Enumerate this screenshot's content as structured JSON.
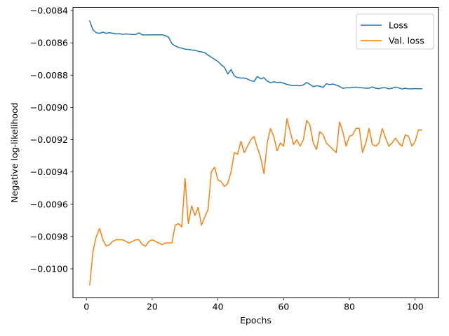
{
  "chart_data": {
    "type": "line",
    "title": "",
    "xlabel": "Epochs",
    "ylabel": "Negative log-likelihood",
    "xlim": [
      -4.1,
      107.1
    ],
    "ylim": [
      -0.01018,
      -0.00838
    ],
    "grid": false,
    "legend_position": "top-right",
    "x_ticks": [
      0,
      20,
      40,
      60,
      80,
      100
    ],
    "x_tick_labels": [
      "0",
      "20",
      "40",
      "60",
      "80",
      "100"
    ],
    "y_ticks": [
      -0.0084,
      -0.0086,
      -0.0088,
      -0.009,
      -0.0092,
      -0.0094,
      -0.0096,
      -0.0098,
      -0.01
    ],
    "y_tick_labels": [
      "−0.0084",
      "−0.0086",
      "−0.0088",
      "−0.0090",
      "−0.0092",
      "−0.0094",
      "−0.0096",
      "−0.0098",
      "−0.0100"
    ],
    "x": [
      1,
      2,
      3,
      4,
      5,
      6,
      7,
      8,
      9,
      10,
      11,
      12,
      13,
      14,
      15,
      16,
      17,
      18,
      19,
      20,
      21,
      22,
      23,
      24,
      25,
      26,
      27,
      28,
      29,
      30,
      31,
      32,
      33,
      34,
      35,
      36,
      37,
      38,
      39,
      40,
      41,
      42,
      43,
      44,
      45,
      46,
      47,
      48,
      49,
      50,
      51,
      52,
      53,
      54,
      55,
      56,
      57,
      58,
      59,
      60,
      61,
      62,
      63,
      64,
      65,
      66,
      67,
      68,
      69,
      70,
      71,
      72,
      73,
      74,
      75,
      76,
      77,
      78,
      79,
      80,
      81,
      82,
      83,
      84,
      85,
      86,
      87,
      88,
      89,
      90,
      91,
      92,
      93,
      94,
      95,
      96,
      97,
      98,
      99,
      100,
      101,
      102
    ],
    "series": [
      {
        "name": "Loss",
        "color": "#1f77b4",
        "values": [
          -0.008465,
          -0.00852,
          -0.008537,
          -0.008541,
          -0.008534,
          -0.008541,
          -0.008537,
          -0.00854,
          -0.008545,
          -0.008543,
          -0.008547,
          -0.008545,
          -0.008546,
          -0.008548,
          -0.008548,
          -0.008538,
          -0.008551,
          -0.008551,
          -0.00855,
          -0.00855,
          -0.00855,
          -0.00855,
          -0.00855,
          -0.008555,
          -0.008565,
          -0.008605,
          -0.008619,
          -0.008628,
          -0.008633,
          -0.008639,
          -0.008641,
          -0.008644,
          -0.008646,
          -0.008652,
          -0.008656,
          -0.008661,
          -0.008676,
          -0.008689,
          -0.008702,
          -0.008715,
          -0.008736,
          -0.008752,
          -0.008793,
          -0.008766,
          -0.008805,
          -0.008815,
          -0.008818,
          -0.008818,
          -0.008824,
          -0.008834,
          -0.008839,
          -0.008808,
          -0.008823,
          -0.008816,
          -0.008837,
          -0.008847,
          -0.008841,
          -0.008846,
          -0.008844,
          -0.00885,
          -0.008857,
          -0.008862,
          -0.008865,
          -0.008864,
          -0.008866,
          -0.008861,
          -0.008845,
          -0.008858,
          -0.008871,
          -0.008866,
          -0.008869,
          -0.008876,
          -0.008853,
          -0.008859,
          -0.008855,
          -0.008862,
          -0.00887,
          -0.008882,
          -0.008878,
          -0.008879,
          -0.008876,
          -0.008874,
          -0.008877,
          -0.008879,
          -0.008881,
          -0.008881,
          -0.008873,
          -0.008881,
          -0.008884,
          -0.008878,
          -0.008878,
          -0.008885,
          -0.008881,
          -0.008874,
          -0.008879,
          -0.008886,
          -0.008881,
          -0.008885,
          -0.008885,
          -0.008883,
          -0.008884,
          -0.008884
        ]
      },
      {
        "name": "Val. loss",
        "color": "#ff7f0e",
        "values": [
          -0.0101,
          -0.00989,
          -0.0098,
          -0.00975,
          -0.00982,
          -0.00986,
          -0.00985,
          -0.00983,
          -0.00982,
          -0.00982,
          -0.00982,
          -0.00983,
          -0.00984,
          -0.00983,
          -0.00982,
          -0.00982,
          -0.00985,
          -0.00986,
          -0.00983,
          -0.00982,
          -0.00983,
          -0.00984,
          -0.00985,
          -0.00984,
          -0.00984,
          -0.00984,
          -0.00973,
          -0.00972,
          -0.00974,
          -0.00944,
          -0.00972,
          -0.00961,
          -0.00967,
          -0.00962,
          -0.00973,
          -0.00968,
          -0.00963,
          -0.0094,
          -0.00937,
          -0.00945,
          -0.00946,
          -0.00949,
          -0.00947,
          -0.0094,
          -0.00928,
          -0.00929,
          -0.00921,
          -0.00928,
          -0.00924,
          -0.0092,
          -0.00918,
          -0.00925,
          -0.00931,
          -0.00941,
          -0.00922,
          -0.00913,
          -0.00918,
          -0.00927,
          -0.00922,
          -0.00924,
          -0.00907,
          -0.00915,
          -0.00923,
          -0.0092,
          -0.00924,
          -0.0092,
          -0.00908,
          -0.00911,
          -0.00922,
          -0.00926,
          -0.00915,
          -0.00917,
          -0.00922,
          -0.00924,
          -0.00926,
          -0.00928,
          -0.00909,
          -0.00915,
          -0.00924,
          -0.00918,
          -0.00917,
          -0.00913,
          -0.00913,
          -0.00928,
          -0.00922,
          -0.00913,
          -0.00923,
          -0.00924,
          -0.00922,
          -0.00913,
          -0.00919,
          -0.00924,
          -0.00922,
          -0.00919,
          -0.00922,
          -0.00924,
          -0.00917,
          -0.00918,
          -0.00924,
          -0.00921,
          -0.00914,
          -0.00914
        ]
      }
    ]
  }
}
